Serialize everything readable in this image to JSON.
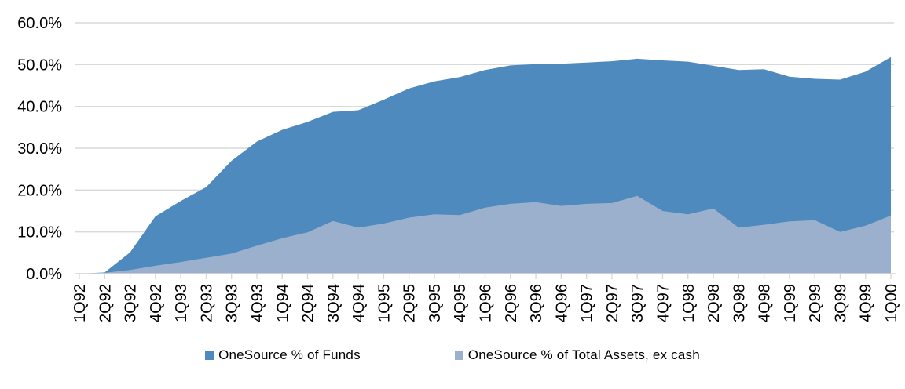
{
  "chart_data": {
    "type": "area",
    "stacking": "overlapped",
    "title": "",
    "xlabel": "",
    "ylabel": "",
    "ylim": [
      0,
      60
    ],
    "grid": true,
    "legend_position": "bottom",
    "y_tick_labels": [
      "0.0%",
      "10.0%",
      "20.0%",
      "30.0%",
      "40.0%",
      "50.0%",
      "60.0%"
    ],
    "categories": [
      "1Q92",
      "2Q92",
      "3Q92",
      "4Q92",
      "1Q93",
      "2Q93",
      "3Q93",
      "4Q93",
      "1Q94",
      "2Q94",
      "3Q94",
      "4Q94",
      "1Q95",
      "2Q95",
      "3Q95",
      "4Q95",
      "1Q96",
      "2Q96",
      "3Q96",
      "4Q96",
      "1Q97",
      "2Q97",
      "3Q97",
      "4Q97",
      "1Q98",
      "2Q98",
      "3Q98",
      "4Q98",
      "1Q99",
      "2Q99",
      "3Q99",
      "4Q99",
      "1Q00"
    ],
    "series": [
      {
        "name": "OneSource % of Funds",
        "color": "#4E8ABE",
        "values": [
          0.0,
          0.3,
          5.1,
          13.7,
          17.4,
          20.7,
          27.0,
          31.6,
          34.4,
          36.3,
          38.7,
          39.1,
          41.6,
          44.3,
          46.0,
          47.0,
          48.7,
          49.8,
          50.1,
          50.2,
          50.5,
          50.8,
          51.4,
          51.0,
          50.7,
          49.7,
          48.7,
          48.9,
          47.1,
          46.6,
          46.4,
          48.3,
          51.8
        ]
      },
      {
        "name": "OneSource % of Total Assets, ex cash",
        "color": "#9BB0CD",
        "values": [
          0.0,
          0.2,
          0.9,
          1.9,
          2.8,
          3.8,
          4.8,
          6.7,
          8.5,
          9.9,
          12.6,
          11.0,
          12.0,
          13.4,
          14.2,
          14.0,
          15.8,
          16.7,
          17.1,
          16.2,
          16.7,
          16.9,
          18.6,
          15.0,
          14.2,
          15.6,
          11.0,
          11.7,
          12.5,
          12.8,
          10.0,
          11.5,
          13.9
        ]
      }
    ]
  },
  "style": {
    "gridline_color": "#D9D9D9",
    "axis_color": "#D9D9D9",
    "text_color": "#000000",
    "background_color": "#FFFFFF"
  }
}
